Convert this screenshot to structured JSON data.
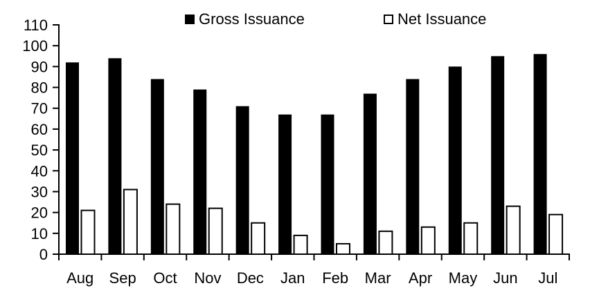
{
  "chart_data": {
    "type": "bar",
    "title": "",
    "xlabel": "",
    "ylabel": "",
    "categories": [
      "Aug",
      "Sep",
      "Oct",
      "Nov",
      "Dec",
      "Jan",
      "Feb",
      "Mar",
      "Apr",
      "May",
      "Jun",
      "Jul"
    ],
    "series": [
      {
        "name": "Gross Issuance",
        "fill": "#000000",
        "stroke": "#000000",
        "values": [
          92,
          94,
          84,
          79,
          71,
          67,
          67,
          77,
          84,
          90,
          95,
          96
        ]
      },
      {
        "name": "Net Issuance",
        "fill": "#ffffff",
        "stroke": "#000000",
        "values": [
          21,
          31,
          24,
          22,
          15,
          9,
          5,
          11,
          13,
          15,
          23,
          19
        ]
      }
    ],
    "ylim": [
      0,
      110
    ],
    "yticks": [
      0,
      10,
      20,
      30,
      40,
      50,
      60,
      70,
      80,
      90,
      100,
      110
    ],
    "grid": false,
    "legend_position": "top-center"
  },
  "colors": {
    "axis": "#000000",
    "text": "#000000",
    "background": "#ffffff"
  }
}
